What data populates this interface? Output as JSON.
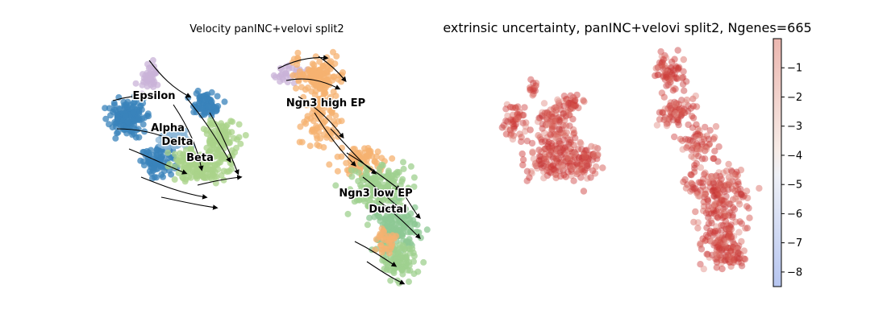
{
  "chart_data": [
    {
      "type": "scatter",
      "title": "Velocity panINC+velovi split2",
      "cluster_labels": [
        "Epsilon",
        "Alpha",
        "Delta",
        "Beta",
        "Ngn3 high EP",
        "Ngn3 low EP",
        "Ductal"
      ],
      "cluster_colors": {
        "Epsilon": "#c9b3d8",
        "Alpha": "#3a83bb",
        "Delta": "#8db8d8",
        "Beta": "#a9d38a",
        "Ngn3 high EP": "#f5b270",
        "Ngn3 low EP": "#9fd08f",
        "Ductal": "#8ec894"
      },
      "streamlines": true,
      "grid": false
    },
    {
      "type": "scatter",
      "title": "extrinsic uncertainty, panINC+velovi split2, Ngenes=665",
      "colorbar": {
        "ticks": [
          -1,
          -2,
          -3,
          -4,
          -5,
          -6,
          -7,
          -8
        ],
        "range": [
          -8.5,
          0
        ],
        "colormap": "coolwarm"
      },
      "grid": false
    }
  ]
}
